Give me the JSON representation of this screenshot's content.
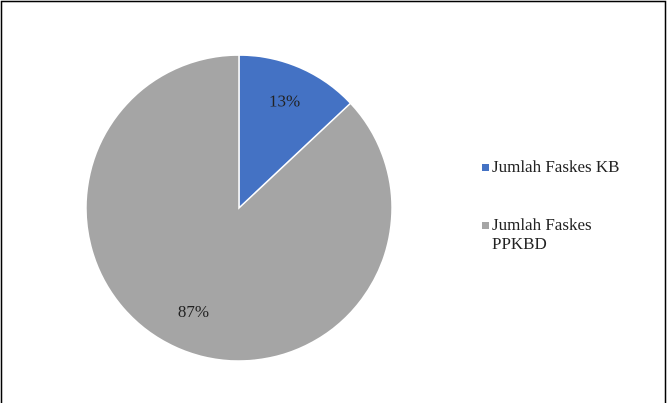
{
  "chart_data": {
    "type": "pie",
    "categories": [
      "Jumlah Faskes KB",
      "Jumlah Faskes PPKBD"
    ],
    "values": [
      13,
      87
    ],
    "value_labels": [
      "13%",
      "87%"
    ],
    "colors": [
      "#4472c4",
      "#a5a5a5"
    ],
    "legend": "right"
  }
}
